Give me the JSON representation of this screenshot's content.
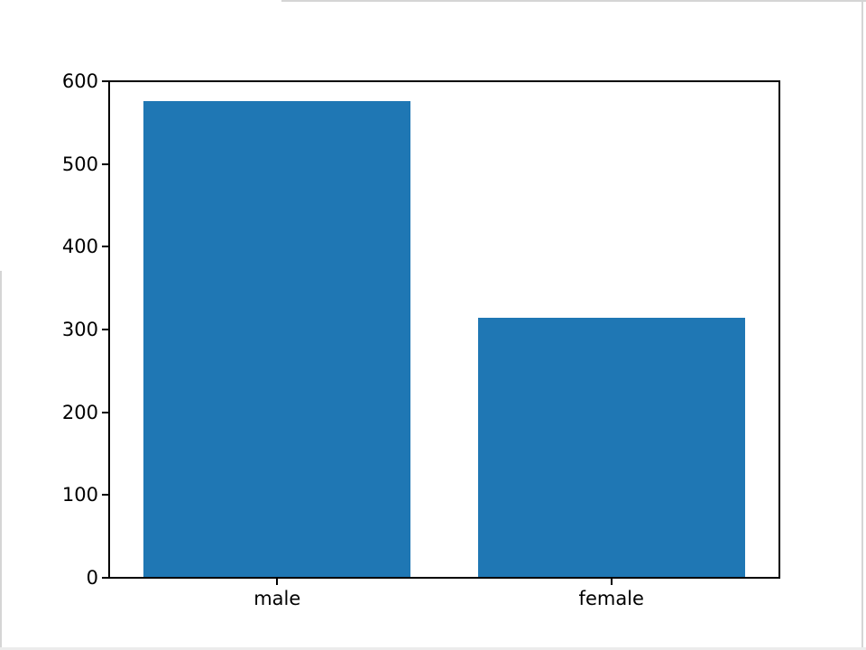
{
  "chart_data": {
    "type": "bar",
    "categories": [
      "male",
      "female"
    ],
    "values": [
      577,
      314
    ],
    "title": "",
    "xlabel": "",
    "ylabel": "",
    "ylim": [
      0,
      600
    ],
    "yticks": [
      0,
      100,
      200,
      300,
      400,
      500,
      600
    ],
    "bar_color": "#1f77b4",
    "axis_color": "#000000",
    "background_color": "#ffffff",
    "grid": false,
    "legend_position": "none",
    "bar_width_fraction": 0.8
  }
}
